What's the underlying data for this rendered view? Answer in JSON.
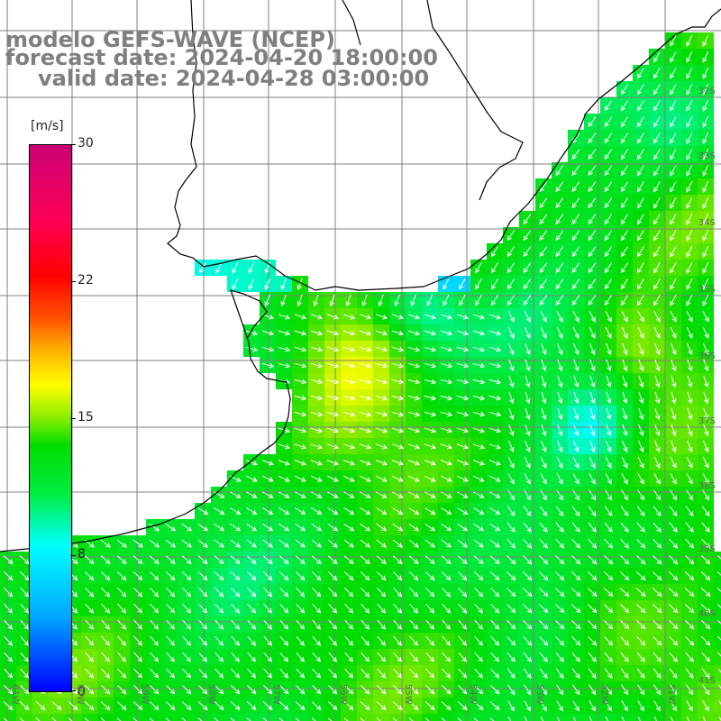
{
  "title": {
    "line1": "modelo GEFS-WAVE (NCEP)",
    "line2": "forecast date: 2024-04-20 18:00:00",
    "line3": "valid date: 2024-04-28 03:00:00"
  },
  "colorbar": {
    "unit": "[m/s]",
    "ticks": [
      "30",
      "22",
      "15",
      "8",
      "0"
    ],
    "min": 0,
    "max": 30
  },
  "axes": {
    "lat_labels": [
      "32S",
      "33S",
      "34S",
      "35S",
      "36S",
      "37S",
      "38S",
      "39S",
      "40S",
      "41S"
    ],
    "lon_labels": [
      "61W",
      "60W",
      "59W",
      "58W",
      "57W",
      "56W",
      "55W",
      "54W",
      "53W",
      "52W",
      "51W"
    ]
  },
  "map": {
    "variable": "wind speed with direction arrows",
    "region": "Río de la Plata estuary and adjacent South Atlantic",
    "land_color": "#ffffff",
    "coastline_color": "#000000",
    "grid_color": "#808080",
    "arrow_color": "#ffffff"
  }
}
